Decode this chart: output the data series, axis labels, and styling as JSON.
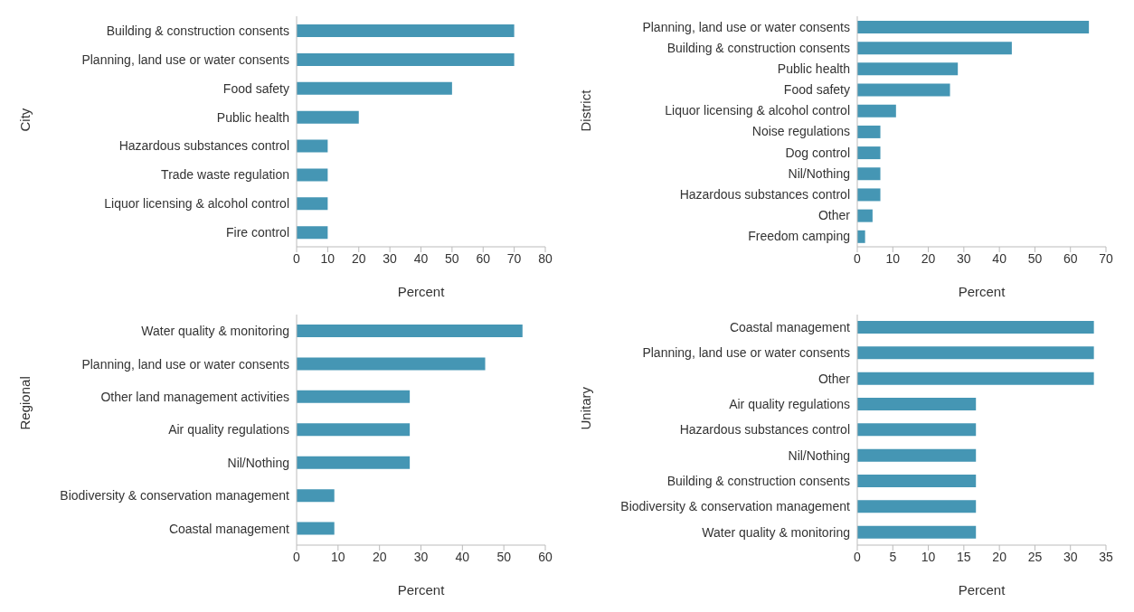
{
  "chart_data": [
    {
      "type": "bar",
      "orientation": "horizontal",
      "ylabel": "City",
      "xlabel": "Percent",
      "color": "#4596b4",
      "grid": false,
      "legend": false,
      "categories": [
        "Building & construction consents",
        "Planning, land use or water consents",
        "Food safety",
        "Public health",
        "Hazardous substances control",
        "Trade waste regulation",
        "Liquor licensing & alcohol control",
        "Fire control"
      ],
      "values": [
        70,
        70,
        50,
        20,
        10,
        10,
        10,
        10
      ],
      "xlim": [
        0,
        80
      ],
      "xticks": [
        0,
        10,
        20,
        30,
        40,
        50,
        60,
        70,
        80
      ]
    },
    {
      "type": "bar",
      "orientation": "horizontal",
      "ylabel": "District",
      "xlabel": "Percent",
      "color": "#4596b4",
      "grid": false,
      "legend": false,
      "categories": [
        "Planning, land use or water consents",
        "Building & construction consents",
        "Public health",
        "Food safety",
        "Liquor licensing & alcohol control",
        "Noise regulations",
        "Dog control",
        "Nil/Nothing",
        "Hazardous substances control",
        "Other",
        "Freedom camping"
      ],
      "values": [
        65.2,
        43.5,
        28.3,
        26.1,
        10.9,
        6.5,
        6.5,
        6.5,
        6.5,
        4.3,
        2.2
      ],
      "xlim": [
        0,
        70
      ],
      "xticks": [
        0,
        10,
        20,
        30,
        40,
        50,
        60,
        70
      ]
    },
    {
      "type": "bar",
      "orientation": "horizontal",
      "ylabel": "Regional",
      "xlabel": "Percent",
      "color": "#4596b4",
      "grid": false,
      "legend": false,
      "categories": [
        "Water quality & monitoring",
        "Planning, land use or water consents",
        "Other land management activities",
        "Air quality regulations",
        "Nil/Nothing",
        "Biodiversity & conservation management",
        "Coastal management"
      ],
      "values": [
        54.5,
        45.5,
        27.3,
        27.3,
        27.3,
        9.1,
        9.1
      ],
      "xlim": [
        0,
        60
      ],
      "xticks": [
        0,
        10,
        20,
        30,
        40,
        50,
        60
      ]
    },
    {
      "type": "bar",
      "orientation": "horizontal",
      "ylabel": "Unitary",
      "xlabel": "Percent",
      "color": "#4596b4",
      "grid": false,
      "legend": false,
      "categories": [
        "Coastal management",
        "Planning, land use or water consents",
        "Other",
        "Air quality regulations",
        "Hazardous substances control",
        "Nil/Nothing",
        "Building & construction consents",
        "Biodiversity & conservation management",
        "Water quality & monitoring"
      ],
      "values": [
        33.3,
        33.3,
        33.3,
        16.7,
        16.7,
        16.7,
        16.7,
        16.7,
        16.7
      ],
      "xlim": [
        0,
        35
      ],
      "xticks": [
        0,
        5,
        10,
        15,
        20,
        25,
        30,
        35
      ]
    }
  ]
}
